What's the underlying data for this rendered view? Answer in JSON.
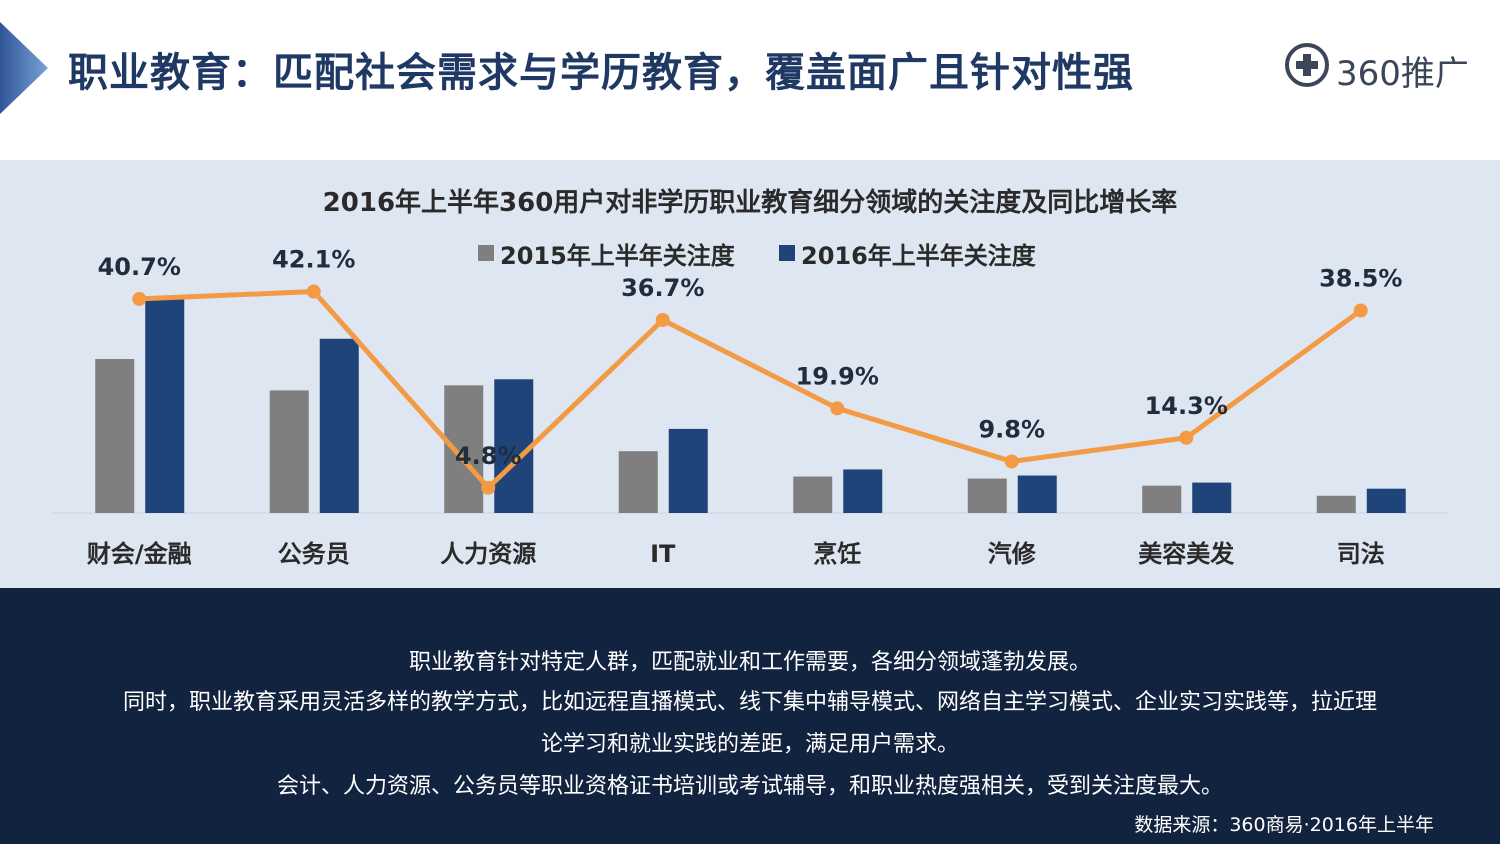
{
  "header": {
    "title": "职业教育：匹配社会需求与学历教育，覆盖面广且针对性强",
    "logo_text": "360推广"
  },
  "colors": {
    "series_2015": "#7f7f7f",
    "series_2016": "#1f4479",
    "growth_line": "#f39a45",
    "title": "#1f3864",
    "panel_bg": "#dde6f1",
    "footer_bg": "#12233f"
  },
  "icons": {
    "header_marker": "triangle-arrow-icon",
    "logo": "plus-circle-icon"
  },
  "chart_data": {
    "type": "bar",
    "title": "2016年上半年360用户对非学历职业教育细分领域的关注度及同比增长率",
    "categories": [
      "财会/金融",
      "公务员",
      "人力资源",
      "IT",
      "烹饪",
      "汽修",
      "美容美发",
      "司法"
    ],
    "series": [
      {
        "name": "2015年上半年关注度",
        "values": [
          152,
          121,
          126,
          61,
          36,
          34,
          27,
          17
        ]
      },
      {
        "name": "2016年上半年关注度",
        "values": [
          214,
          172,
          132,
          83,
          43,
          37,
          30,
          24
        ]
      }
    ],
    "growth_line": {
      "type": "line",
      "values": [
        40.7,
        42.1,
        4.8,
        36.7,
        19.9,
        9.8,
        14.3,
        38.5
      ],
      "labels": [
        "40.7%",
        "42.1%",
        "4.8%",
        "36.7%",
        "19.9%",
        "9.8%",
        "14.3%",
        "38.5%"
      ],
      "ylim": [
        0,
        50
      ]
    },
    "ylim": [
      0,
      230
    ],
    "grid": false,
    "legend": "top"
  },
  "footer": {
    "lines": [
      "职业教育针对特定人群，匹配就业和工作需要，各细分领域蓬勃发展。",
      "同时，职业教育采用灵活多样的教学方式，比如远程直播模式、线下集中辅导模式、网络自主学习模式、企业实习实践等，拉近理",
      "论学习和就业实践的差距，满足用户需求。",
      "会计、人力资源、公务员等职业资格证书培训或考试辅导，和职业热度强相关，受到关注度最大。"
    ],
    "source": "数据来源：360商易·2016年上半年"
  }
}
